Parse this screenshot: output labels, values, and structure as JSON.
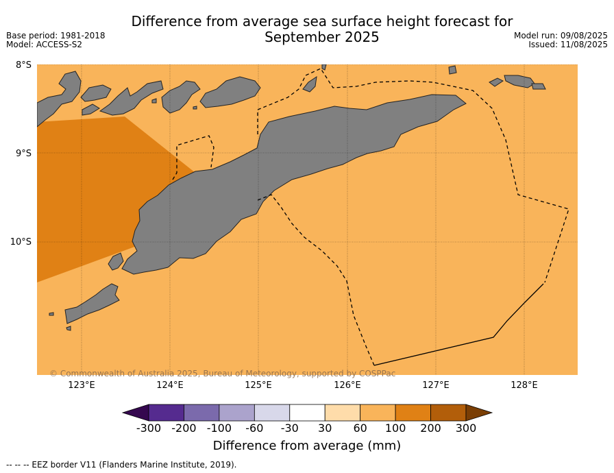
{
  "title": "Difference from average sea surface height forecast for September 2025",
  "title_line1": "Difference from average sea surface height forecast for",
  "title_line2": "September 2025",
  "base_period": "Base period: 1981-2018",
  "model": "Model: ACCESS-S2",
  "model_run": "Model run: 09/08/2025",
  "issued": "Issued: 11/08/2025",
  "lat_labels": [
    "8°S",
    "9°S",
    "10°S"
  ],
  "lon_labels": [
    "123°E",
    "124°E",
    "125°E",
    "126°E",
    "127°E",
    "128°E"
  ],
  "credit": "© Commonwealth of Australia 2025, Bureau of Meteorology, supported by COSPPac",
  "colorbar": {
    "title": "Difference from average (mm)",
    "ticks": [
      "-300",
      "-200",
      "-100",
      "-60",
      "-30",
      "30",
      "60",
      "100",
      "200",
      "300"
    ],
    "colors": [
      "#35084f",
      "#552b8f",
      "#7b6aac",
      "#aba3cc",
      "#d8d8ea",
      "#ffffff",
      "#fedcaa",
      "#f9b45a",
      "#e08115",
      "#b25e0a",
      "#7a3e05"
    ]
  },
  "footnote": "--  --  -- EEZ border V11 (Flanders Marine Institute, 2019).",
  "colors": {
    "ocean_60_100": "#f9b45a",
    "ocean_100_200": "#e08115",
    "land": "#808080"
  }
}
